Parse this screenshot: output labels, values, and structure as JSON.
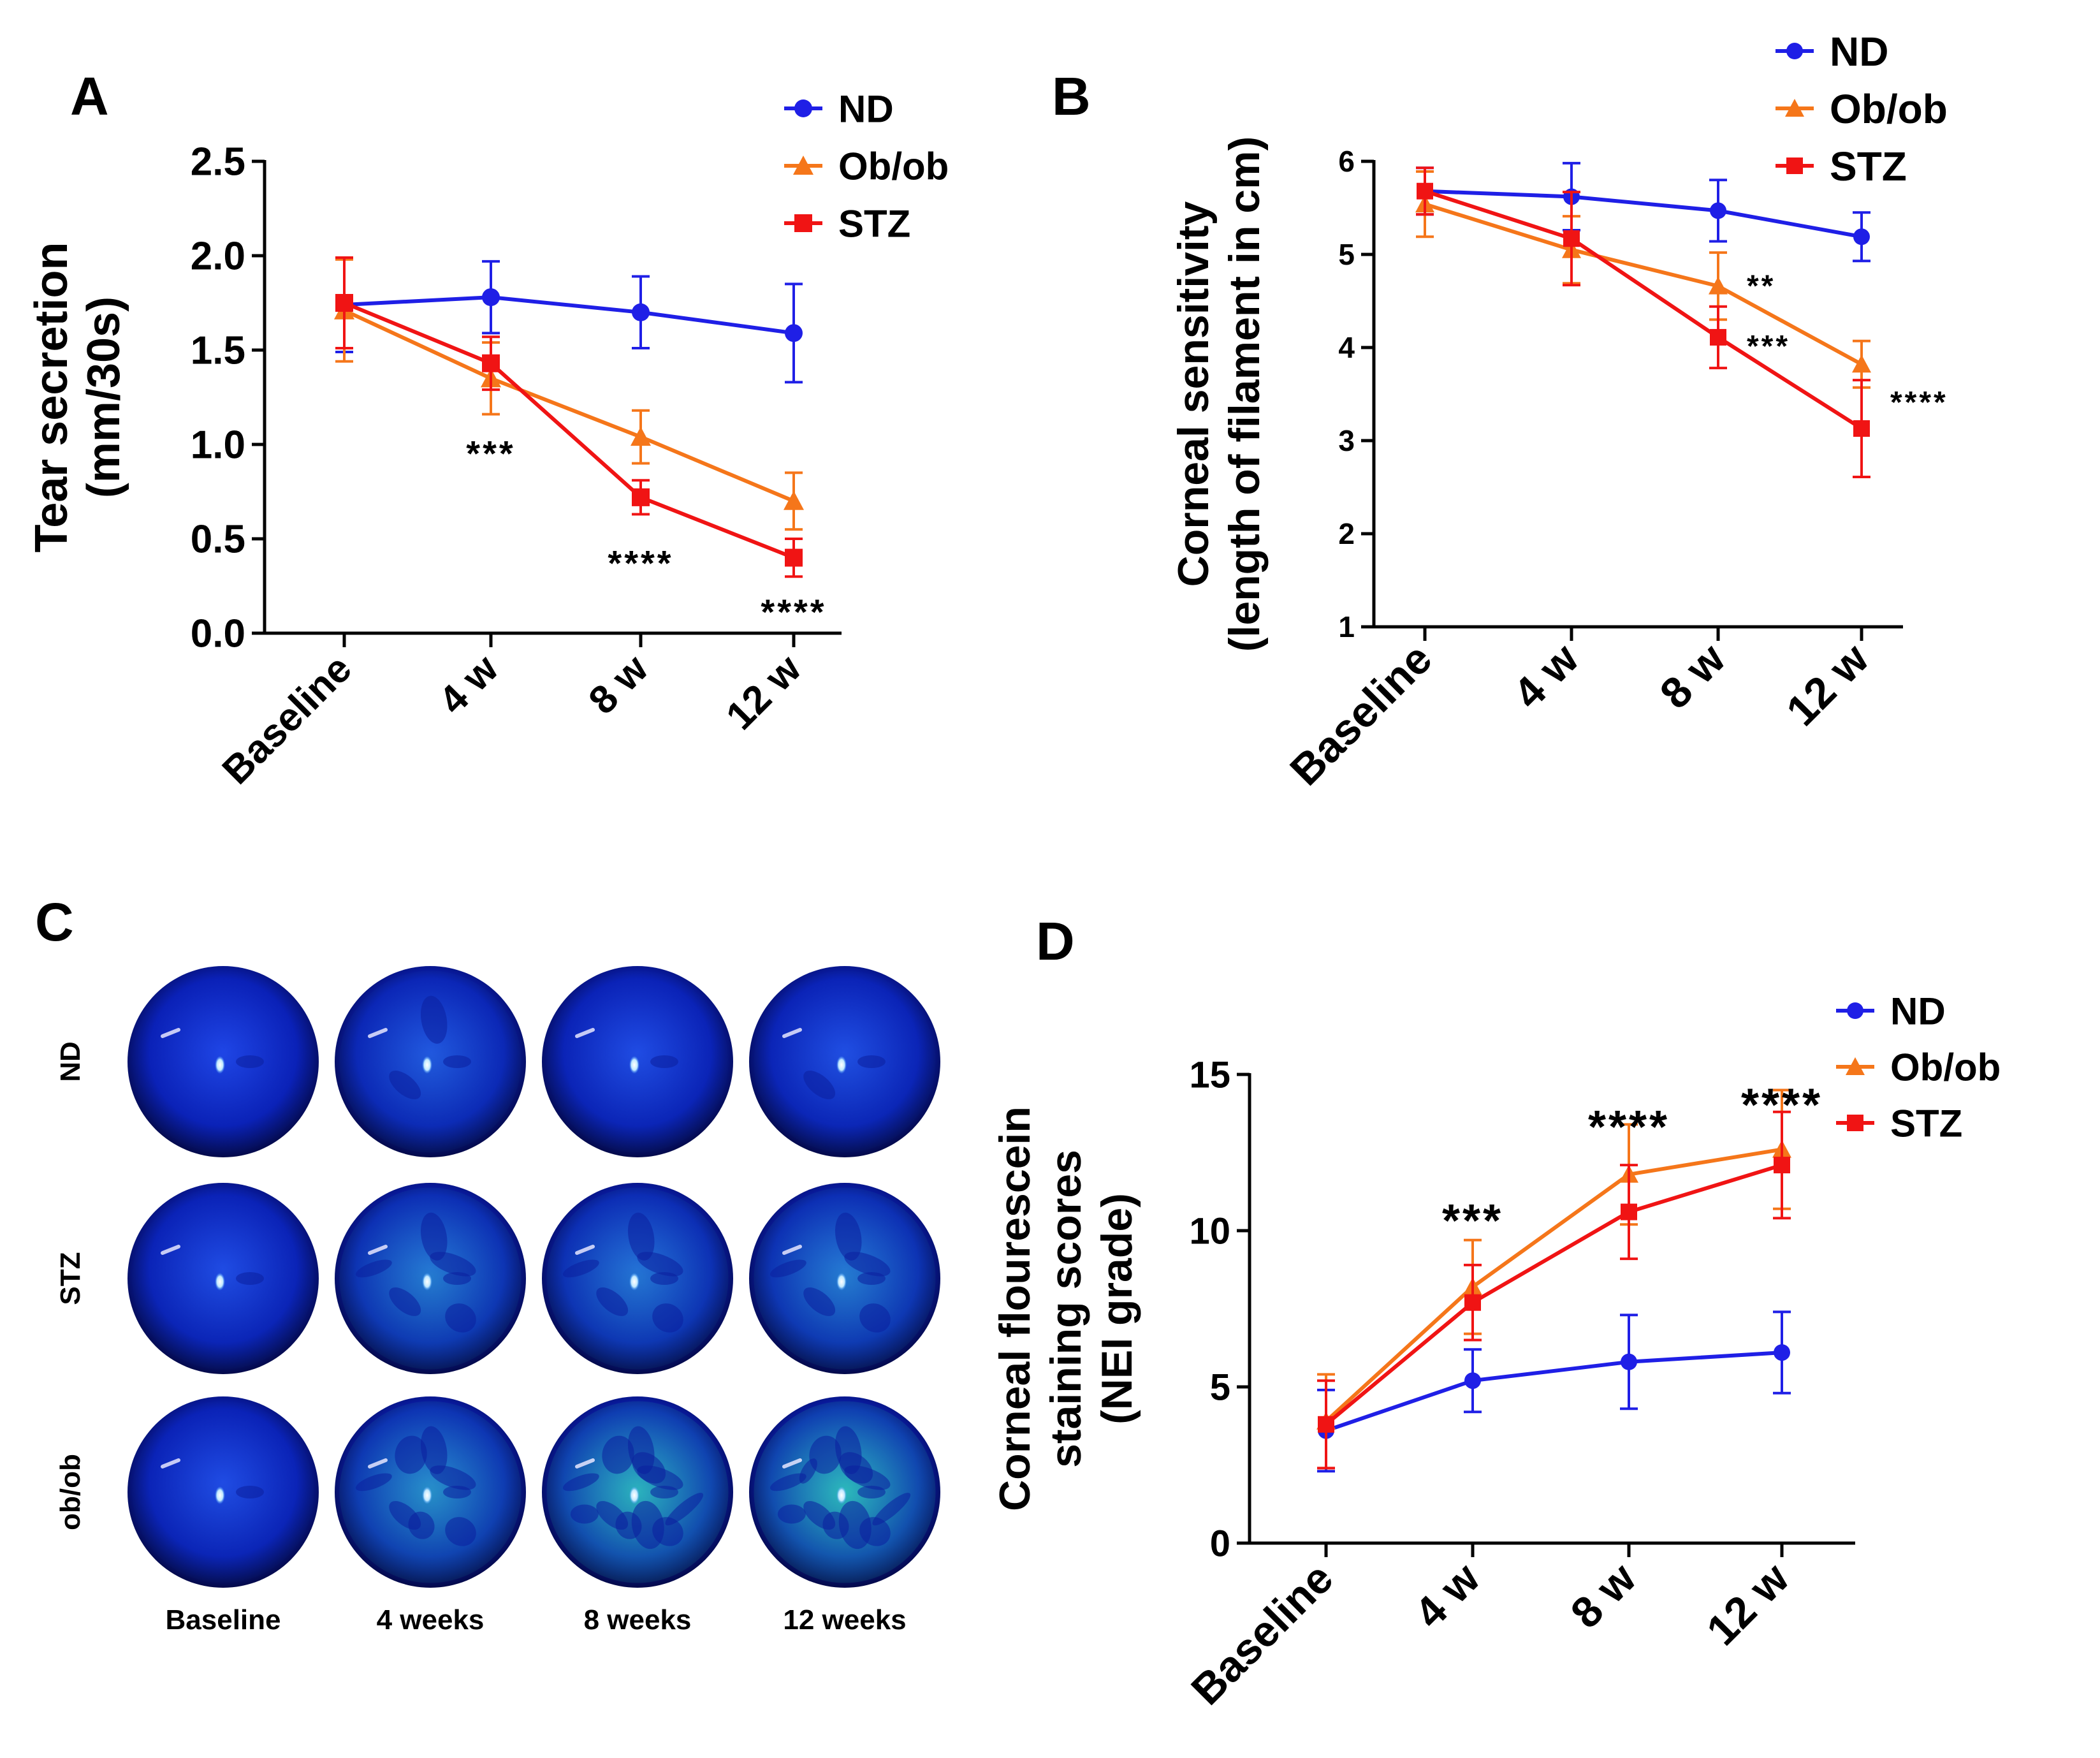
{
  "figure": {
    "panels": {
      "A": {
        "letter": "A"
      },
      "B": {
        "letter": "B"
      },
      "C": {
        "letter": "C"
      },
      "D": {
        "letter": "D"
      }
    }
  },
  "colors": {
    "ND": "#1f1fe6",
    "Ob/ob": "#f5761a",
    "STZ": "#f01414",
    "axis": "#000000"
  },
  "chart_data": [
    {
      "panel": "A",
      "type": "line",
      "categories": [
        "Baseline",
        "4 w",
        "8 w",
        "12 w"
      ],
      "ylabel_lines": [
        "Tear secretion",
        "(mm/30s)"
      ],
      "xlabel": "",
      "ylim": [
        0,
        2.5
      ],
      "yticks": [
        "0.0",
        "0.5",
        "1.0",
        "1.5",
        "2.0",
        "2.5"
      ],
      "legend": [
        "ND",
        "Ob/ob",
        "STZ"
      ],
      "series": [
        {
          "name": "ND",
          "marker": "circle",
          "values": [
            1.74,
            1.78,
            1.7,
            1.59
          ],
          "errors": [
            0.25,
            0.19,
            0.19,
            0.26
          ]
        },
        {
          "name": "Ob/ob",
          "marker": "triangle",
          "values": [
            1.71,
            1.35,
            1.04,
            0.7
          ],
          "errors": [
            0.27,
            0.19,
            0.14,
            0.15
          ]
        },
        {
          "name": "STZ",
          "marker": "square",
          "values": [
            1.75,
            1.43,
            0.72,
            0.4
          ],
          "errors": [
            0.24,
            0.14,
            0.09,
            0.1
          ]
        }
      ],
      "annotations": [
        {
          "text": "***",
          "x": "4 w",
          "y": 1.0
        },
        {
          "text": "****",
          "x": "8 w",
          "y": 0.42
        },
        {
          "text": "****",
          "x": "12 w",
          "y": 0.16
        }
      ]
    },
    {
      "panel": "B",
      "type": "line",
      "categories": [
        "Baseline",
        "4 w",
        "8 w",
        "12 w"
      ],
      "ylabel_lines": [
        "Corneal sensitivity",
        "(length of filament in cm)"
      ],
      "xlabel": "",
      "ylim": [
        1,
        6
      ],
      "yticks": [
        "1",
        "2",
        "3",
        "4",
        "5",
        "6"
      ],
      "legend": [
        "ND",
        "Ob/ob",
        "STZ"
      ],
      "series": [
        {
          "name": "ND",
          "marker": "circle",
          "values": [
            5.68,
            5.62,
            5.47,
            5.19
          ],
          "errors": [
            0.25,
            0.36,
            0.33,
            0.26
          ]
        },
        {
          "name": "Ob/ob",
          "marker": "triangle",
          "values": [
            5.54,
            5.05,
            4.66,
            3.82
          ],
          "errors": [
            0.35,
            0.36,
            0.36,
            0.25
          ]
        },
        {
          "name": "STZ",
          "marker": "square",
          "values": [
            5.68,
            5.17,
            4.11,
            3.13
          ],
          "errors": [
            0.25,
            0.5,
            0.33,
            0.52
          ]
        }
      ],
      "annotations": [
        {
          "text": "**",
          "x": "8 w",
          "y": 4.75
        },
        {
          "text": "***",
          "x": "8 w",
          "y": 4.1
        },
        {
          "text": "****",
          "x": "12 w",
          "y": 3.5
        }
      ]
    },
    {
      "panel": "D",
      "type": "line",
      "categories": [
        "Baseline",
        "4 w",
        "8 w",
        "12 w"
      ],
      "ylabel_lines": [
        "Corneal flourescein",
        "staining scores",
        "(NEI grade)"
      ],
      "xlabel": "",
      "ylim": [
        0,
        15
      ],
      "yticks": [
        "0",
        "5",
        "10",
        "15"
      ],
      "legend": [
        "ND",
        "Ob/ob",
        "STZ"
      ],
      "series": [
        {
          "name": "ND",
          "marker": "circle",
          "values": [
            3.6,
            5.2,
            5.8,
            6.1
          ],
          "errors": [
            1.3,
            1.0,
            1.5,
            1.3
          ]
        },
        {
          "name": "Ob/ob",
          "marker": "triangle",
          "values": [
            3.9,
            8.2,
            11.8,
            12.6
          ],
          "errors": [
            1.5,
            1.5,
            1.6,
            1.9
          ]
        },
        {
          "name": "STZ",
          "marker": "square",
          "values": [
            3.8,
            7.7,
            10.6,
            12.1
          ],
          "errors": [
            1.4,
            1.2,
            1.5,
            1.7
          ]
        }
      ],
      "annotations": [
        {
          "text": "***",
          "x": "4 w",
          "y": 10.7
        },
        {
          "text": "****",
          "x": "8 w",
          "y": 13.7
        },
        {
          "text": "****",
          "x": "12 w",
          "y": 14.4
        }
      ]
    }
  ],
  "panel_c": {
    "row_labels": [
      "ND",
      "STZ",
      "ob/ob"
    ],
    "column_labels": [
      "Baseline",
      "4 weeks",
      "8 weeks",
      "12 weeks"
    ],
    "staining": [
      [
        0.05,
        0.2,
        0.1,
        0.12
      ],
      [
        0.1,
        0.45,
        0.4,
        0.45
      ],
      [
        0.1,
        0.6,
        0.85,
        0.9
      ]
    ]
  }
}
